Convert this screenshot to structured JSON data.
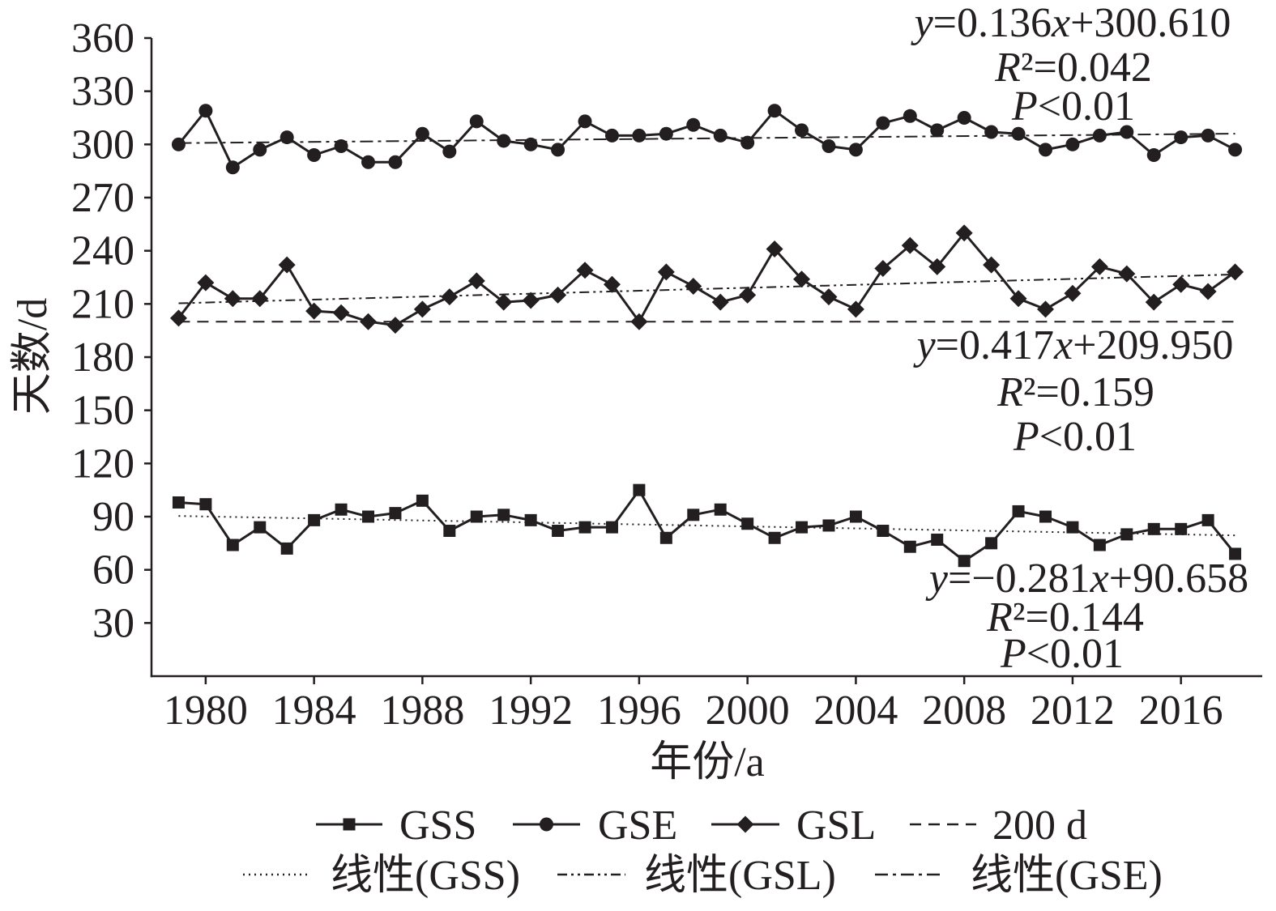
{
  "chart_data": {
    "type": "line",
    "xlabel": "年份/a",
    "ylabel": "天数/d",
    "x": [
      1979,
      1980,
      1981,
      1982,
      1983,
      1984,
      1985,
      1986,
      1987,
      1988,
      1989,
      1990,
      1991,
      1992,
      1993,
      1994,
      1995,
      1996,
      1997,
      1998,
      1999,
      2000,
      2001,
      2002,
      2003,
      2004,
      2005,
      2006,
      2007,
      2008,
      2009,
      2010,
      2011,
      2012,
      2013,
      2014,
      2015,
      2016,
      2017,
      2018
    ],
    "xlim": [
      1978,
      2019
    ],
    "ylim": [
      0,
      360
    ],
    "xticks": [
      1980,
      1984,
      1988,
      1992,
      1996,
      2000,
      2004,
      2008,
      2012,
      2016
    ],
    "yticks": [
      30,
      60,
      90,
      120,
      150,
      180,
      210,
      240,
      270,
      300,
      330,
      360
    ],
    "grid": false,
    "color": "#231f20",
    "series": [
      {
        "name": "GSS",
        "marker": "square",
        "values": [
          98,
          97,
          74,
          84,
          72,
          88,
          94,
          90,
          92,
          99,
          82,
          90,
          91,
          88,
          82,
          84,
          84,
          105,
          78,
          91,
          94,
          86,
          78,
          84,
          85,
          90,
          82,
          73,
          77,
          65,
          75,
          93,
          90,
          84,
          74,
          80,
          83,
          83,
          88,
          69
        ]
      },
      {
        "name": "GSE",
        "marker": "circle",
        "values": [
          300,
          319,
          287,
          297,
          304,
          294,
          299,
          290,
          290,
          306,
          296,
          313,
          302,
          300,
          297,
          313,
          305,
          305,
          306,
          311,
          305,
          301,
          319,
          308,
          299,
          297,
          312,
          316,
          308,
          315,
          307,
          306,
          297,
          300,
          305,
          307,
          294,
          304,
          305,
          297
        ]
      },
      {
        "name": "GSL",
        "marker": "diamond",
        "values": [
          202,
          222,
          213,
          213,
          232,
          206,
          205,
          200,
          198,
          207,
          214,
          223,
          211,
          212,
          215,
          229,
          221,
          200,
          228,
          220,
          211,
          215,
          241,
          224,
          214,
          207,
          230,
          243,
          231,
          250,
          232,
          213,
          207,
          216,
          231,
          227,
          211,
          221,
          217,
          228
        ]
      }
    ],
    "reference_lines": [
      {
        "name": "200 d",
        "y": 200,
        "line_style": "dashed"
      }
    ],
    "trendlines": [
      {
        "name": "线性(GSS)",
        "line_style": "dotted",
        "slope": -0.281,
        "intercept": 90.658,
        "equation": "y=−0.281x+90.658",
        "r_squared": "R²=0.144",
        "p_value": "P<0.01"
      },
      {
        "name": "线性(GSL)",
        "line_style": "dash-dot-dot",
        "slope": 0.417,
        "intercept": 209.95,
        "equation": "y=0.417x+209.950",
        "r_squared": "R²=0.159",
        "p_value": "P<0.01"
      },
      {
        "name": "线性(GSE)",
        "line_style": "dash-dot",
        "slope": 0.136,
        "intercept": 300.61,
        "equation": "y=0.136x+300.610",
        "r_squared": "R²=0.042",
        "p_value": "P<0.01"
      }
    ],
    "legend": {
      "placement": "bottom"
    }
  }
}
